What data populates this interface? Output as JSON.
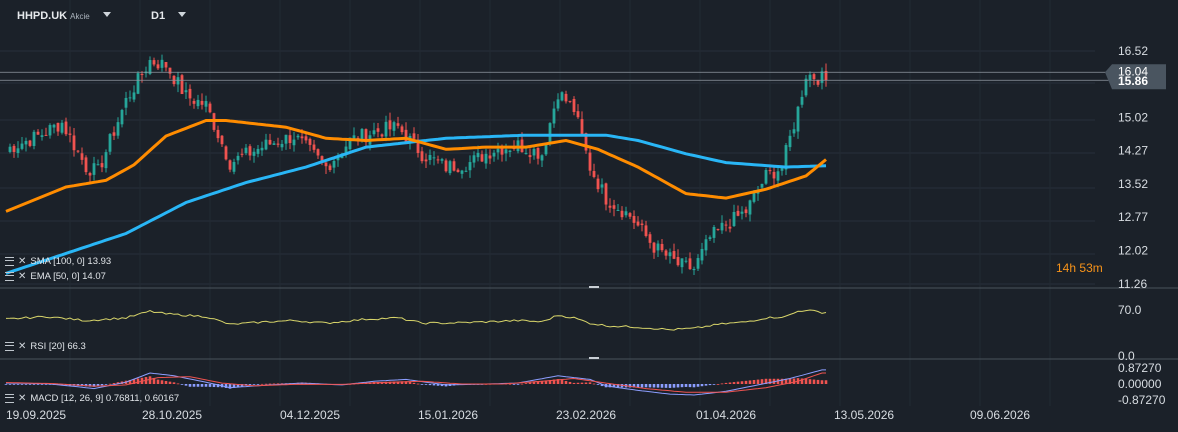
{
  "header": {
    "symbol": "HHPD.UK",
    "instrument_type": "Akcie",
    "timeframe": "D1"
  },
  "countdown": {
    "hours": "14",
    "h_unit": "h",
    "minutes": "53",
    "m_unit": "m"
  },
  "indicators": {
    "sma_label": "SMA [100, 0] 13.93",
    "ema_label": "EMA [50, 0] 14.07",
    "rsi_label": "RSI [20] 66.3",
    "macd_label": "MACD [12, 26, 9] 0.76811, 0.60167"
  },
  "colors": {
    "background": "#1b2129",
    "bull": "#26a69a",
    "bear": "#ef5350",
    "sma": "#29b6f6",
    "ema": "#ff8c00",
    "rsi": "#d8d56a",
    "macd": "#8c9eff",
    "signal": "#ef5350",
    "price_tag": "#4a5560"
  },
  "chart_data": [
    {
      "type": "candlestick",
      "name": "price",
      "price_axis_ticks": [
        "16.52",
        "15.02",
        "14.27",
        "13.52",
        "12.77",
        "12.02",
        "11.26"
      ],
      "current_price_labels": [
        "16.04",
        "15.86"
      ],
      "ylim": [
        11.26,
        16.52
      ],
      "x_tick_labels": [
        "19.09.2025",
        "28.10.2025",
        "04.12.2025",
        "15.01.2026",
        "23.02.2026",
        "01.04.2026",
        "13.05.2026",
        "09.06.2026"
      ],
      "sma_last": 13.93,
      "ema_last": 14.07,
      "sma_knots": [
        [
          0,
          11.5
        ],
        [
          20,
          12.1
        ],
        [
          30,
          12.4
        ],
        [
          45,
          13.1
        ],
        [
          60,
          13.55
        ],
        [
          75,
          13.9
        ],
        [
          90,
          14.35
        ],
        [
          110,
          14.55
        ],
        [
          130,
          14.62
        ],
        [
          150,
          14.62
        ],
        [
          158,
          14.5
        ],
        [
          170,
          14.2
        ],
        [
          180,
          14.0
        ],
        [
          195,
          13.9
        ],
        [
          205,
          13.93
        ]
      ],
      "ema_knots": [
        [
          0,
          12.9
        ],
        [
          15,
          13.45
        ],
        [
          25,
          13.6
        ],
        [
          32,
          13.95
        ],
        [
          40,
          14.6
        ],
        [
          50,
          14.95
        ],
        [
          55,
          14.95
        ],
        [
          70,
          14.8
        ],
        [
          80,
          14.55
        ],
        [
          90,
          14.5
        ],
        [
          100,
          14.55
        ],
        [
          110,
          14.3
        ],
        [
          120,
          14.35
        ],
        [
          130,
          14.35
        ],
        [
          140,
          14.5
        ],
        [
          148,
          14.3
        ],
        [
          158,
          13.9
        ],
        [
          170,
          13.3
        ],
        [
          180,
          13.2
        ],
        [
          190,
          13.4
        ],
        [
          200,
          13.7
        ],
        [
          205,
          14.07
        ]
      ],
      "close_knots": [
        [
          0,
          14.3
        ],
        [
          8,
          14.6
        ],
        [
          14,
          14.9
        ],
        [
          20,
          13.9
        ],
        [
          23,
          13.8
        ],
        [
          30,
          15.4
        ],
        [
          36,
          16.3
        ],
        [
          40,
          16.2
        ],
        [
          45,
          15.5
        ],
        [
          50,
          15.3
        ],
        [
          56,
          14.0
        ],
        [
          65,
          14.4
        ],
        [
          72,
          14.6
        ],
        [
          80,
          13.9
        ],
        [
          86,
          14.5
        ],
        [
          92,
          14.7
        ],
        [
          98,
          14.8
        ],
        [
          104,
          14.2
        ],
        [
          110,
          13.9
        ],
        [
          116,
          14.0
        ],
        [
          122,
          14.3
        ],
        [
          128,
          14.4
        ],
        [
          134,
          14.2
        ],
        [
          138,
          15.6
        ],
        [
          142,
          15.2
        ],
        [
          146,
          13.9
        ],
        [
          150,
          13.2
        ],
        [
          156,
          12.8
        ],
        [
          162,
          12.1
        ],
        [
          168,
          11.7
        ],
        [
          172,
          11.6
        ],
        [
          176,
          12.3
        ],
        [
          180,
          12.6
        ],
        [
          185,
          12.9
        ],
        [
          190,
          13.7
        ],
        [
          194,
          13.9
        ],
        [
          198,
          15.2
        ],
        [
          200,
          16.0
        ],
        [
          204,
          15.9
        ],
        [
          205,
          15.86
        ]
      ]
    },
    {
      "type": "line",
      "name": "RSI",
      "axis_ticks": [
        "70.0",
        "0.0"
      ],
      "last_value": 66.3,
      "knots": [
        [
          0,
          56
        ],
        [
          10,
          60
        ],
        [
          20,
          54
        ],
        [
          30,
          58
        ],
        [
          36,
          68
        ],
        [
          40,
          64
        ],
        [
          50,
          60
        ],
        [
          56,
          48
        ],
        [
          65,
          52
        ],
        [
          72,
          54
        ],
        [
          80,
          50
        ],
        [
          90,
          56
        ],
        [
          98,
          58
        ],
        [
          104,
          50
        ],
        [
          110,
          50
        ],
        [
          120,
          52
        ],
        [
          128,
          54
        ],
        [
          134,
          52
        ],
        [
          138,
          62
        ],
        [
          142,
          58
        ],
        [
          146,
          50
        ],
        [
          150,
          46
        ],
        [
          158,
          44
        ],
        [
          166,
          40
        ],
        [
          172,
          42
        ],
        [
          178,
          48
        ],
        [
          185,
          52
        ],
        [
          190,
          58
        ],
        [
          195,
          60
        ],
        [
          198,
          68
        ],
        [
          200,
          70
        ],
        [
          204,
          66.3
        ]
      ]
    },
    {
      "type": "bar+line",
      "name": "MACD",
      "axis_ticks": [
        "0.87270",
        "0.00000",
        "-0.87270"
      ],
      "ylim": [
        -0.8727,
        0.8727
      ],
      "macd_last": 0.76811,
      "signal_last": 0.60167,
      "macd_knots": [
        [
          0,
          0.05
        ],
        [
          10,
          0.02
        ],
        [
          18,
          -0.15
        ],
        [
          22,
          -0.25
        ],
        [
          30,
          0.1
        ],
        [
          36,
          0.6
        ],
        [
          42,
          0.45
        ],
        [
          50,
          0.1
        ],
        [
          56,
          -0.2
        ],
        [
          66,
          -0.05
        ],
        [
          74,
          0.05
        ],
        [
          84,
          -0.05
        ],
        [
          92,
          0.15
        ],
        [
          100,
          0.25
        ],
        [
          110,
          -0.05
        ],
        [
          120,
          0.0
        ],
        [
          128,
          0.05
        ],
        [
          138,
          0.45
        ],
        [
          146,
          0.25
        ],
        [
          150,
          -0.1
        ],
        [
          158,
          -0.35
        ],
        [
          166,
          -0.55
        ],
        [
          172,
          -0.6
        ],
        [
          180,
          -0.4
        ],
        [
          188,
          -0.05
        ],
        [
          196,
          0.3
        ],
        [
          204,
          0.77
        ]
      ],
      "signal_knots": [
        [
          0,
          0.08
        ],
        [
          12,
          0.02
        ],
        [
          22,
          -0.12
        ],
        [
          30,
          -0.05
        ],
        [
          38,
          0.35
        ],
        [
          46,
          0.4
        ],
        [
          54,
          0.05
        ],
        [
          62,
          -0.1
        ],
        [
          72,
          -0.02
        ],
        [
          84,
          -0.02
        ],
        [
          94,
          0.08
        ],
        [
          104,
          0.15
        ],
        [
          114,
          0.0
        ],
        [
          124,
          0.0
        ],
        [
          134,
          0.15
        ],
        [
          142,
          0.3
        ],
        [
          150,
          0.05
        ],
        [
          160,
          -0.25
        ],
        [
          170,
          -0.45
        ],
        [
          180,
          -0.45
        ],
        [
          190,
          -0.2
        ],
        [
          198,
          0.15
        ],
        [
          204,
          0.6
        ]
      ]
    }
  ]
}
